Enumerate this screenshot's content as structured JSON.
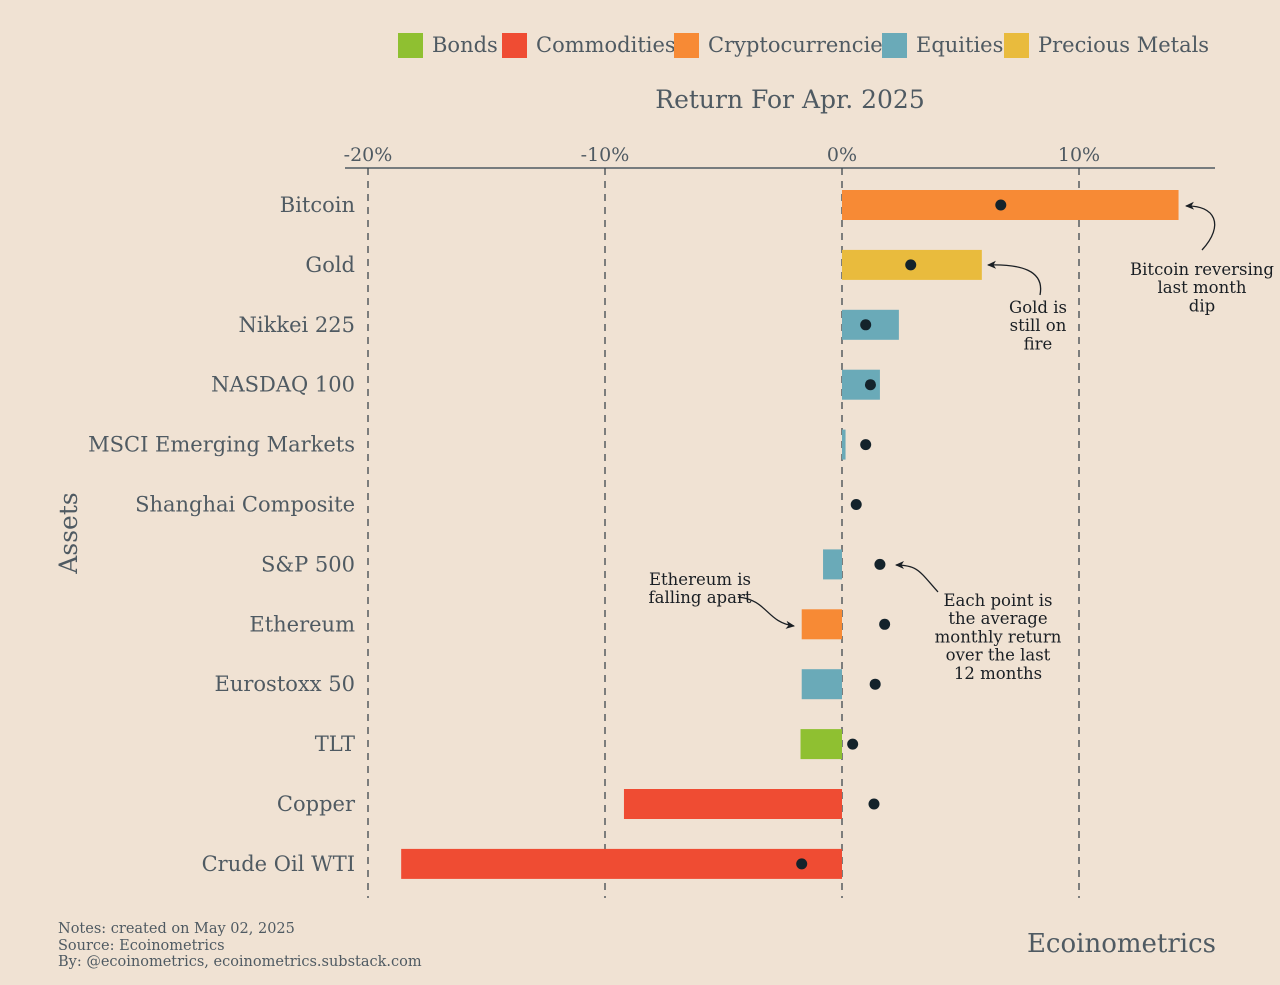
{
  "chart_data": {
    "type": "bar",
    "title": "Return For Apr. 2025",
    "xlabel": "Return For Apr. 2025",
    "ylabel": "Assets",
    "xlim": [
      -20,
      15.8
    ],
    "x_ticks": [
      {
        "value": -20,
        "label": "-20%"
      },
      {
        "value": -10,
        "label": "-10%"
      },
      {
        "value": 0,
        "label": "0%"
      },
      {
        "value": 10,
        "label": "10%"
      }
    ],
    "grid": "vertical dashed",
    "legend_position": "top",
    "legend": [
      {
        "name": "Bonds",
        "color": "#8fc031"
      },
      {
        "name": "Commodities",
        "color": "#ef4c33"
      },
      {
        "name": "Cryptocurrencies",
        "color": "#f78a35"
      },
      {
        "name": "Equities",
        "color": "#6aaab8"
      },
      {
        "name": "Precious Metals",
        "color": "#e9bb3d"
      }
    ],
    "categories": [
      "Bitcoin",
      "Gold",
      "Nikkei 225",
      "NASDAQ 100",
      "MSCI Emerging Markets",
      "Shanghai Composite",
      "S&P 500",
      "Ethereum",
      "Eurostoxx 50",
      "TLT",
      "Copper",
      "Crude Oil WTI"
    ],
    "series": [
      {
        "name": "Return For Apr. 2025",
        "values": [
          14.2,
          5.9,
          2.4,
          1.6,
          0.15,
          0.0,
          -0.8,
          -1.7,
          -1.7,
          -1.75,
          -9.2,
          -18.6
        ],
        "groups": [
          "Cryptocurrencies",
          "Precious Metals",
          "Equities",
          "Equities",
          "Equities",
          "Equities",
          "Equities",
          "Cryptocurrencies",
          "Equities",
          "Bonds",
          "Commodities",
          "Commodities"
        ]
      },
      {
        "name": "Average monthly return over the last 12 months",
        "values": [
          6.7,
          2.9,
          1.0,
          1.2,
          1.0,
          0.6,
          1.6,
          1.8,
          1.4,
          0.45,
          1.35,
          -1.7
        ]
      }
    ],
    "annotations": [
      {
        "target": "Bitcoin",
        "lines": [
          "Bitcoin reversing",
          "last month",
          "dip"
        ]
      },
      {
        "target": "Gold",
        "lines": [
          "Gold is",
          "still on",
          "fire"
        ]
      },
      {
        "target": "Ethereum",
        "lines": [
          "Ethereum is",
          "falling apart"
        ]
      },
      {
        "target": "S&P 500",
        "lines": [
          "Each point is",
          "the average",
          "monthly return",
          "over the last",
          "12 months"
        ]
      }
    ]
  },
  "notes": {
    "line1": "Notes: created on May 02, 2025",
    "line2": "Source: Ecoinometrics",
    "line3": "By: @ecoinometrics, ecoinometrics.substack.com"
  },
  "brand": "Ecoinometrics",
  "colors": {
    "background": "#f0e2d3",
    "text": "#4f5a62",
    "dot": "#14232b",
    "axis": "#4f5a62"
  }
}
